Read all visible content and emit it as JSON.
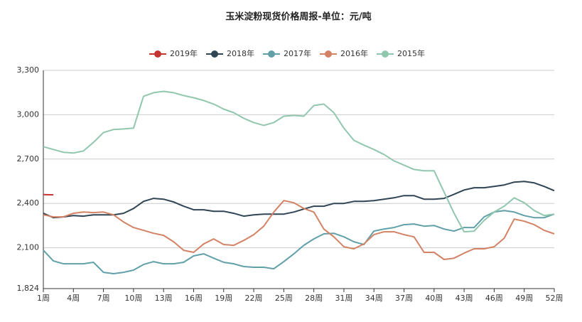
{
  "chart_data": {
    "type": "line",
    "title": "玉米淀粉现货价格周报-单位：元/吨",
    "categories": [
      "1周",
      null,
      null,
      "4周",
      null,
      null,
      "7周",
      null,
      null,
      "10周",
      null,
      null,
      "13周",
      null,
      null,
      "16周",
      null,
      null,
      "19周",
      null,
      null,
      "22周",
      null,
      null,
      "25周",
      null,
      null,
      "28周",
      null,
      null,
      "31周",
      null,
      null,
      "34周",
      null,
      null,
      "37周",
      null,
      null,
      "40周",
      null,
      null,
      "43周",
      null,
      null,
      "46周",
      null,
      null,
      "49周",
      null,
      null,
      "52周"
    ],
    "ylim": [
      1824,
      3300
    ],
    "yticks": [
      {
        "value": 1824,
        "label": "1,824"
      },
      {
        "value": 2100,
        "label": "2,100"
      },
      {
        "value": 2400,
        "label": "2,400"
      },
      {
        "value": 2700,
        "label": "2,700"
      },
      {
        "value": 3000,
        "label": "3,000"
      },
      {
        "value": 3300,
        "label": "3,300"
      }
    ],
    "grid": true,
    "legend": "top",
    "series": [
      {
        "name": "2019年",
        "color": "#c23531",
        "values": [
          2460,
          2458,
          null,
          null,
          null,
          null,
          null,
          null,
          null,
          null,
          null,
          null,
          null,
          null,
          null,
          null,
          null,
          null,
          null,
          null,
          null,
          null,
          null,
          null,
          null,
          null,
          null,
          null,
          null,
          null,
          null,
          null,
          null,
          null,
          null,
          null,
          null,
          null,
          null,
          null,
          null,
          null,
          null,
          null,
          null,
          null,
          null,
          null,
          null,
          null,
          null,
          null
        ]
      },
      {
        "name": "2018年",
        "color": "#2f4554",
        "values": [
          2333,
          2304,
          2309,
          2318,
          2314,
          2323,
          2323,
          2323,
          2333,
          2366,
          2414,
          2434,
          2429,
          2410,
          2381,
          2357,
          2357,
          2347,
          2347,
          2333,
          2314,
          2323,
          2328,
          2328,
          2328,
          2342,
          2362,
          2381,
          2381,
          2400,
          2400,
          2414,
          2414,
          2419,
          2429,
          2438,
          2453,
          2453,
          2429,
          2429,
          2434,
          2462,
          2491,
          2506,
          2506,
          2515,
          2525,
          2544,
          2549,
          2539,
          2515,
          2486
        ]
      },
      {
        "name": "2017年",
        "color": "#61a0a8",
        "values": [
          2083,
          2011,
          1992,
          1992,
          1992,
          2002,
          1934,
          1925,
          1934,
          1949,
          1987,
          2006,
          1992,
          1992,
          2002,
          2045,
          2059,
          2030,
          2002,
          1992,
          1973,
          1968,
          1968,
          1958,
          2006,
          2059,
          2117,
          2160,
          2194,
          2198,
          2174,
          2141,
          2122,
          2213,
          2227,
          2237,
          2256,
          2261,
          2246,
          2251,
          2227,
          2213,
          2237,
          2237,
          2309,
          2342,
          2352,
          2342,
          2318,
          2304,
          2304,
          2328
        ]
      },
      {
        "name": "2016年",
        "color": "#d48265",
        "values": [
          2323,
          2309,
          2309,
          2333,
          2342,
          2338,
          2342,
          2323,
          2275,
          2237,
          2218,
          2198,
          2184,
          2141,
          2083,
          2069,
          2126,
          2160,
          2122,
          2117,
          2150,
          2189,
          2246,
          2342,
          2419,
          2405,
          2366,
          2342,
          2227,
          2174,
          2107,
          2093,
          2126,
          2189,
          2208,
          2208,
          2189,
          2174,
          2069,
          2069,
          2021,
          2030,
          2064,
          2093,
          2093,
          2107,
          2165,
          2294,
          2280,
          2256,
          2218,
          2194
        ]
      },
      {
        "name": "2015年",
        "color": "#91c7ae",
        "values": [
          2784,
          2765,
          2746,
          2741,
          2755,
          2813,
          2880,
          2900,
          2904,
          2909,
          3125,
          3149,
          3158,
          3149,
          3130,
          3115,
          3096,
          3072,
          3038,
          3014,
          2976,
          2947,
          2928,
          2947,
          2990,
          2995,
          2990,
          3062,
          3072,
          3014,
          2909,
          2827,
          2794,
          2765,
          2731,
          2688,
          2659,
          2630,
          2621,
          2621,
          2477,
          2333,
          2208,
          2213,
          2285,
          2342,
          2381,
          2438,
          2405,
          2352,
          2318,
          2328
        ]
      }
    ]
  }
}
